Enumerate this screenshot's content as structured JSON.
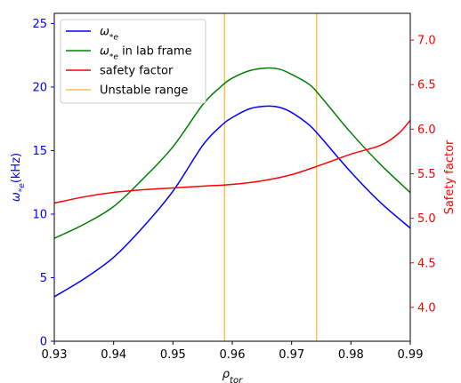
{
  "chart_data": {
    "type": "line",
    "x_axis": {
      "label": "ρtor",
      "range": [
        0.93,
        0.99
      ],
      "ticks": [
        "0.93",
        "0.94",
        "0.95",
        "0.96",
        "0.97",
        "0.98",
        "0.99"
      ],
      "tick_values": [
        0.93,
        0.94,
        0.95,
        0.96,
        0.97,
        0.98,
        0.99
      ]
    },
    "y_left": {
      "label": "ω*e(kHz)",
      "range": [
        0,
        25.8
      ],
      "ticks": [
        "0",
        "5",
        "10",
        "15",
        "20",
        "25"
      ],
      "tick_values": [
        0,
        5,
        10,
        15,
        20,
        25
      ],
      "color": "#0000ff"
    },
    "y_right": {
      "label": "Safety factor",
      "range": [
        3.62,
        7.3
      ],
      "ticks": [
        "4.0",
        "4.5",
        "5.0",
        "5.5",
        "6.0",
        "6.5",
        "7.0"
      ],
      "tick_values": [
        4.0,
        4.5,
        5.0,
        5.5,
        6.0,
        6.5,
        7.0
      ],
      "color": "#ff0000"
    },
    "series": [
      {
        "name": "ω*e",
        "axis": "left",
        "color": "#0000ff",
        "x": [
          0.93,
          0.935,
          0.94,
          0.945,
          0.95,
          0.955,
          0.958,
          0.96,
          0.963,
          0.966,
          0.968,
          0.97,
          0.973,
          0.975,
          0.98,
          0.985,
          0.99
        ],
        "y": [
          3.5,
          4.9,
          6.6,
          9.0,
          11.8,
          15.4,
          16.9,
          17.6,
          18.3,
          18.5,
          18.4,
          18.0,
          17.0,
          16.0,
          13.3,
          10.9,
          8.9
        ]
      },
      {
        "name": "ω*e in lab frame",
        "axis": "left",
        "color": "#008000",
        "x": [
          0.93,
          0.935,
          0.94,
          0.945,
          0.95,
          0.955,
          0.958,
          0.96,
          0.963,
          0.966,
          0.968,
          0.97,
          0.973,
          0.975,
          0.98,
          0.985,
          0.99
        ],
        "y": [
          8.1,
          9.2,
          10.6,
          12.8,
          15.3,
          18.6,
          20.0,
          20.7,
          21.3,
          21.5,
          21.4,
          21.0,
          20.2,
          19.2,
          16.4,
          13.9,
          11.7
        ]
      },
      {
        "name": "safety factor",
        "axis": "right",
        "color": "#ff0000",
        "x": [
          0.93,
          0.935,
          0.94,
          0.945,
          0.95,
          0.955,
          0.96,
          0.965,
          0.97,
          0.975,
          0.98,
          0.985,
          0.988,
          0.99
        ],
        "y": [
          5.17,
          5.24,
          5.29,
          5.32,
          5.34,
          5.36,
          5.38,
          5.42,
          5.49,
          5.6,
          5.72,
          5.82,
          5.95,
          6.1
        ]
      }
    ],
    "vertical_lines": {
      "name": "Unstable range",
      "color": "#ffc04d",
      "x": [
        0.9587,
        0.9742
      ]
    },
    "legend": {
      "placement": "top-left",
      "entries": [
        {
          "label": "ω*e",
          "color": "#0000ff"
        },
        {
          "label": "ω*e in lab frame",
          "color": "#008000"
        },
        {
          "label": "safety factor",
          "color": "#ff0000"
        },
        {
          "label": "Unstable range",
          "color": "#ffc04d"
        }
      ]
    },
    "grid": false
  }
}
